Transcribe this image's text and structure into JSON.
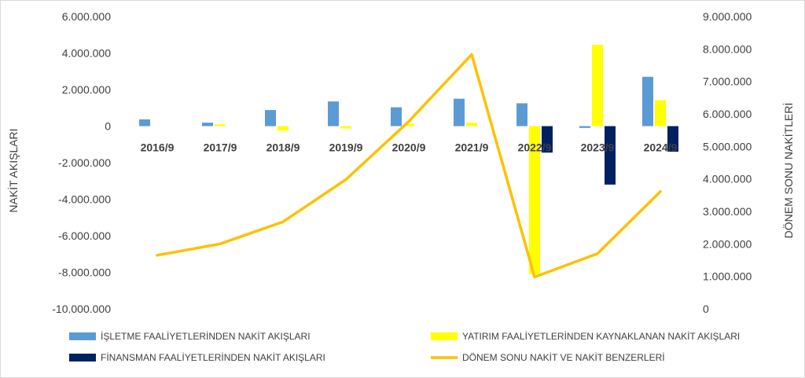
{
  "chart_data": {
    "type": "bar",
    "categories": [
      "2016/9",
      "2017/9",
      "2018/9",
      "2019/9",
      "2020/9",
      "2021/9",
      "2022/9",
      "2023/9",
      "2024/9"
    ],
    "ylabel": "NAKİT AKIŞLARI",
    "y2label": "DÖNEM SONU NAKİTLERİ",
    "ylim": [
      -10000000,
      6000000
    ],
    "y2lim": [
      0,
      9000000
    ],
    "yticks": [
      "6.000.000",
      "4.000.000",
      "2.000.000",
      "0",
      "-2.000.000",
      "-4.000.000",
      "-6.000.000",
      "-8.000.000",
      "-10.000.000"
    ],
    "y2ticks": [
      "9.000.000",
      "8.000.000",
      "7.000.000",
      "6.000.000",
      "5.000.000",
      "4.000.000",
      "3.000.000",
      "2.000.000",
      "1.000.000",
      "0"
    ],
    "grid": false,
    "legend_position": "bottom",
    "series": [
      {
        "name": "İŞLETME FAALİYETLERİNDEN NAKİT AKIŞLARI",
        "type": "bar",
        "axis": "left",
        "color": "#5b9bd5",
        "values": [
          370000,
          190000,
          880000,
          1350000,
          1030000,
          1500000,
          1250000,
          -100000,
          2700000
        ]
      },
      {
        "name": "YATIRIM FAALİYETLERİNDEN KAYNAKLANAN NAKİT AKIŞLARI",
        "type": "bar",
        "axis": "left",
        "color": "#ffff00",
        "values": [
          0,
          100000,
          -250000,
          -130000,
          120000,
          180000,
          -8100000,
          4450000,
          1420000
        ]
      },
      {
        "name": "FİNANSMAN FAALİYETLERİNDEN NAKİT AKIŞLARI",
        "type": "bar",
        "axis": "left",
        "color": "#002060",
        "values": [
          0,
          0,
          0,
          0,
          0,
          0,
          -1450000,
          -3200000,
          -1400000
        ]
      },
      {
        "name": "DÖNEM SONU NAKİT VE NAKİT BENZERLERİ",
        "type": "line",
        "axis": "right",
        "color": "#ffc000",
        "values": [
          1650000,
          2000000,
          2680000,
          3980000,
          5770000,
          7830000,
          980000,
          1700000,
          3610000
        ]
      }
    ]
  }
}
